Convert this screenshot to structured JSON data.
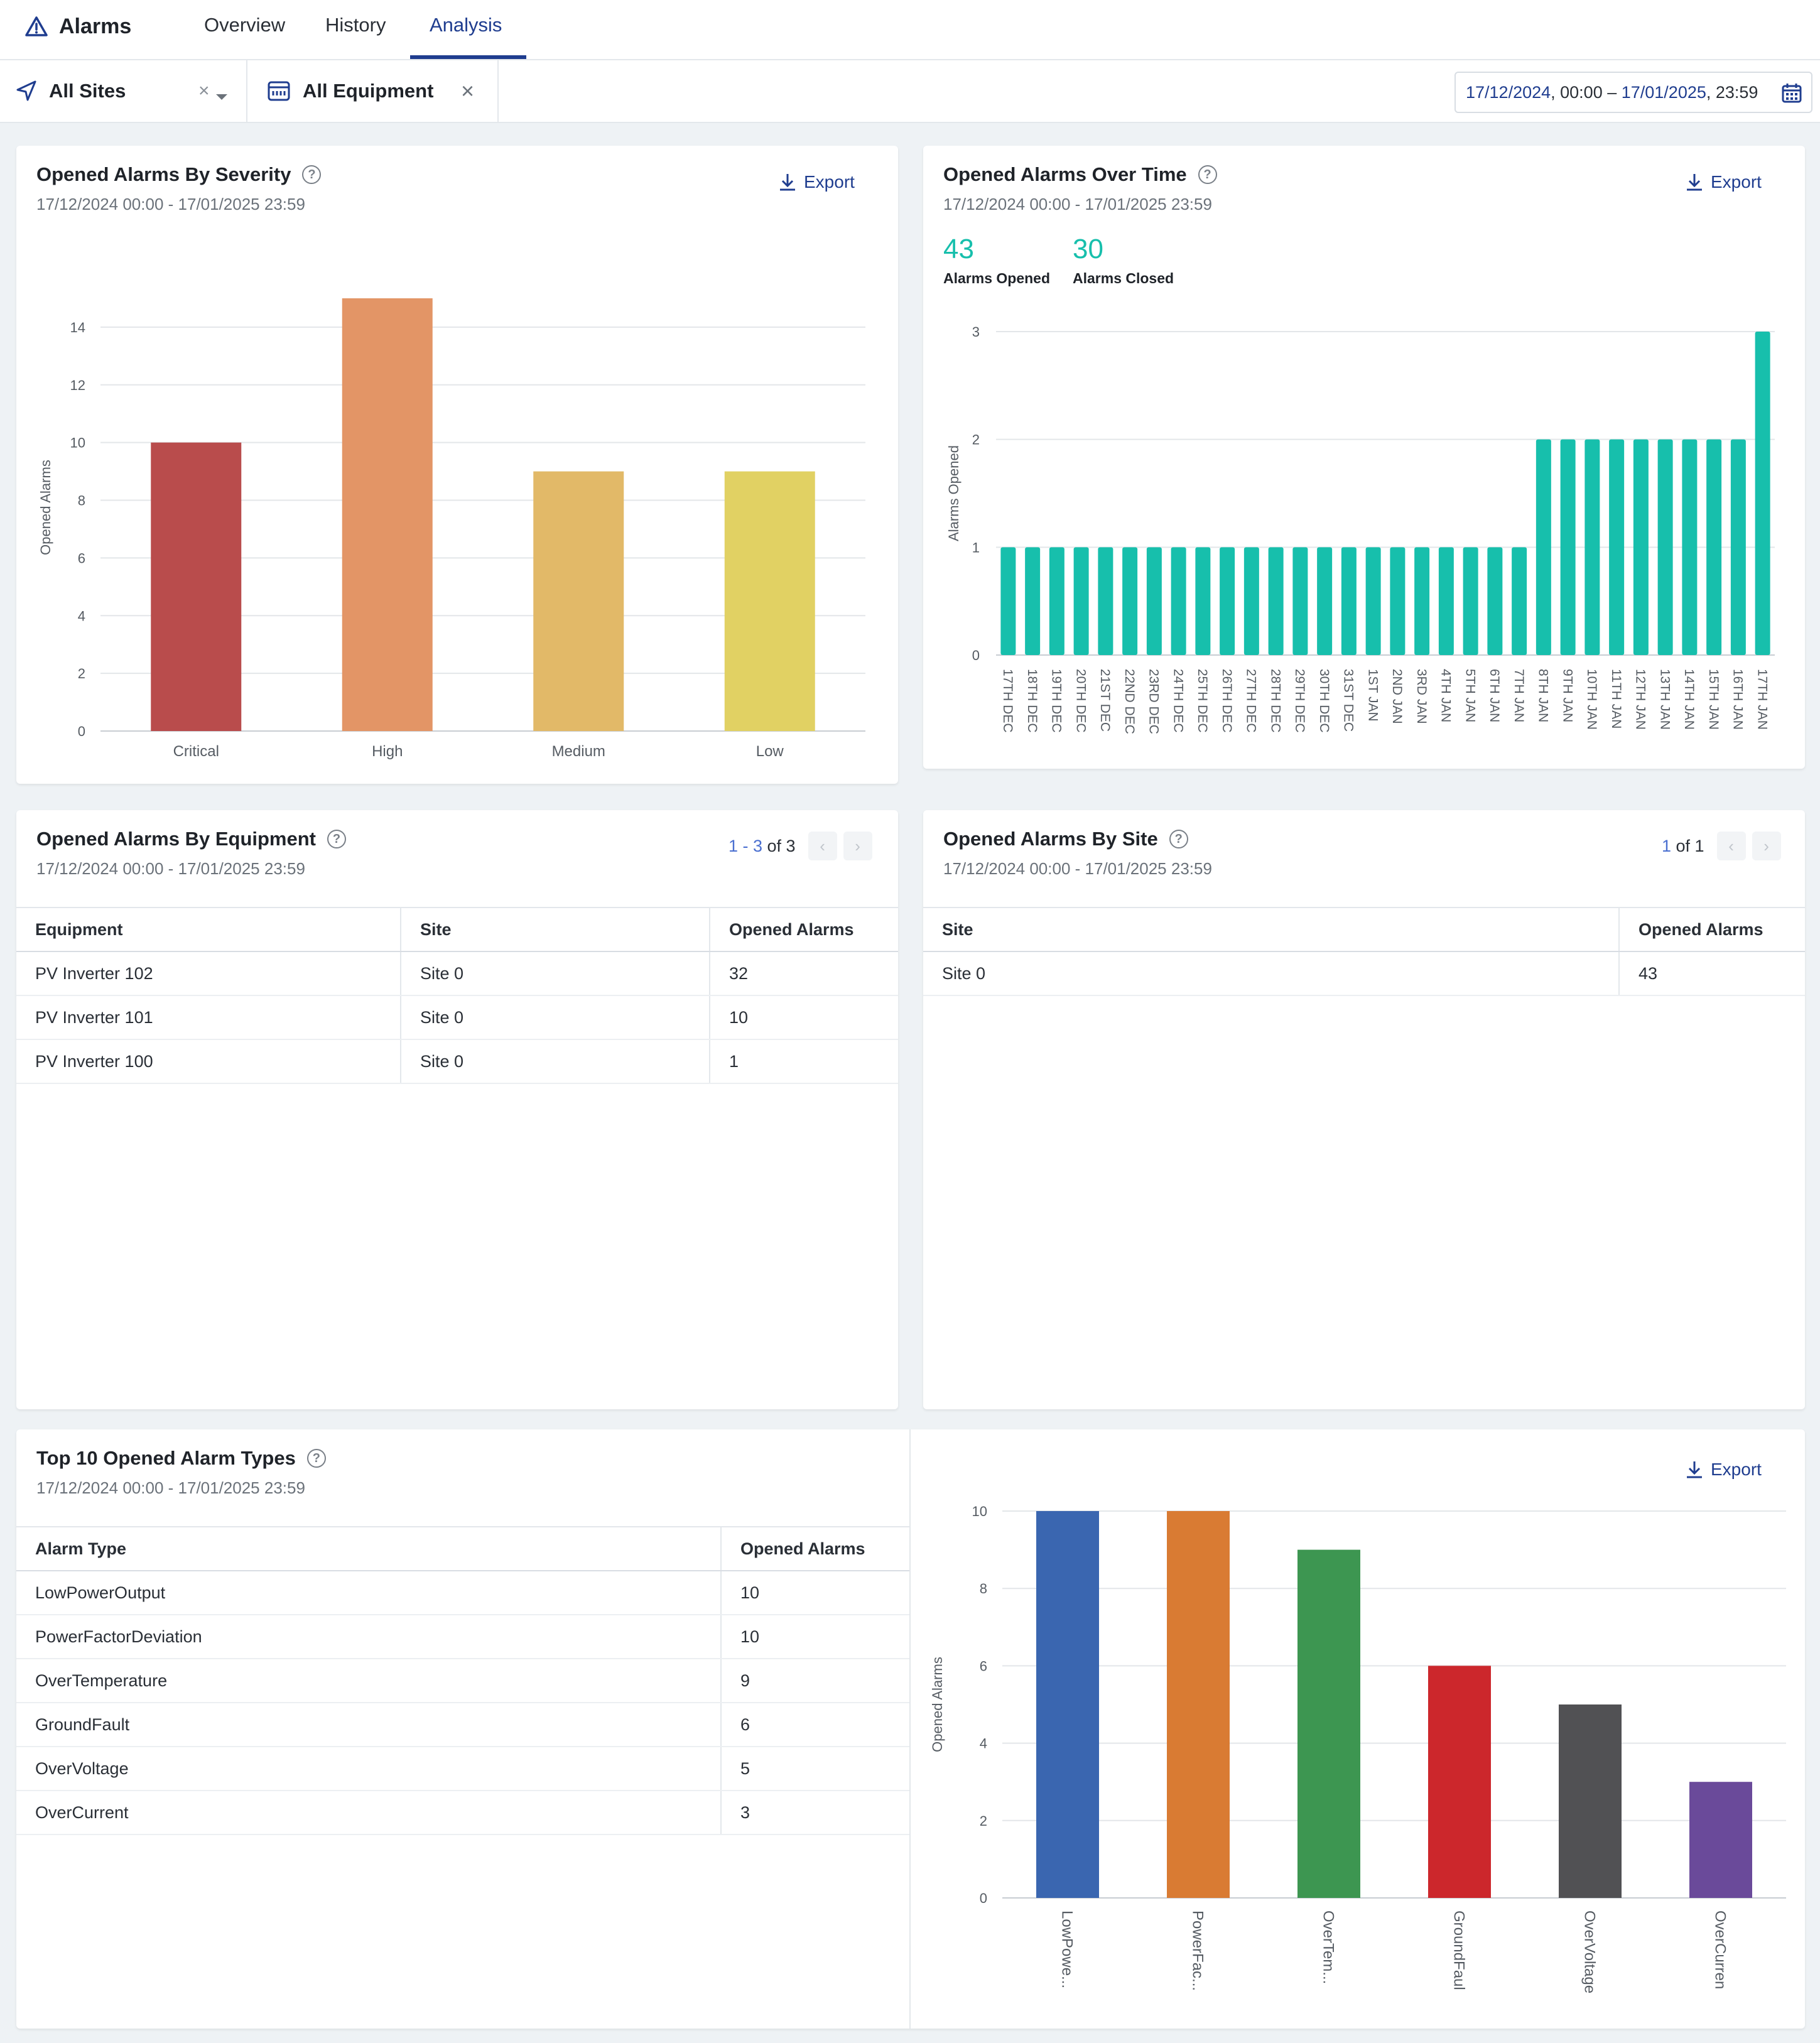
{
  "nav": {
    "title": "Alarms",
    "tabs": [
      "Overview",
      "History",
      "Analysis"
    ],
    "active_tab": "Analysis"
  },
  "filters": {
    "sites_label": "All Sites",
    "equipment_label": "All Equipment",
    "date_from": "17/12/2024",
    "time_from": ", 00:00 – ",
    "date_to": "17/01/2025",
    "time_to": ", 23:59"
  },
  "colors": {
    "accent": "#1f3d8f",
    "teal": "#17bfac",
    "critical": "#b94c4c",
    "high": "#e39566",
    "medium": "#e2b968",
    "low": "#e1d163"
  },
  "period": "17/12/2024 00:00 - 17/01/2025 23:59",
  "export_label": "Export",
  "severity_card": {
    "title": "Opened Alarms By Severity",
    "chart_data": {
      "type": "bar",
      "title": "Opened Alarms By Severity",
      "categories": [
        "Critical",
        "High",
        "Medium",
        "Low"
      ],
      "values": [
        10,
        15,
        9,
        9
      ],
      "colors": [
        "#b94c4c",
        "#e39566",
        "#e2b968",
        "#e1d163"
      ],
      "xlabel": "",
      "ylabel": "Opened Alarms",
      "ylim": [
        0,
        15.5
      ],
      "yticks": [
        0,
        2,
        4,
        6,
        8,
        10,
        12,
        14
      ],
      "grid": true
    }
  },
  "time_card": {
    "title": "Opened Alarms Over Time",
    "opened_count": "43",
    "opened_label": "Alarms Opened",
    "closed_count": "30",
    "closed_label": "Alarms Closed",
    "chart_data": {
      "type": "bar",
      "title": "Opened Alarms Over Time",
      "categories": [
        "17TH DEC",
        "18TH DEC",
        "19TH DEC",
        "20TH DEC",
        "21ST DEC",
        "22ND DEC",
        "23RD DEC",
        "24TH DEC",
        "25TH DEC",
        "26TH DEC",
        "27TH DEC",
        "28TH DEC",
        "29TH DEC",
        "30TH DEC",
        "31ST DEC",
        "1ST JAN",
        "2ND JAN",
        "3RD JAN",
        "4TH JAN",
        "5TH JAN",
        "6TH JAN",
        "7TH JAN",
        "8TH JAN",
        "9TH JAN",
        "10TH JAN",
        "11TH JAN",
        "12TH JAN",
        "13TH JAN",
        "14TH JAN",
        "15TH JAN",
        "16TH JAN",
        "17TH JAN"
      ],
      "values": [
        1,
        1,
        1,
        1,
        1,
        1,
        1,
        1,
        1,
        1,
        1,
        1,
        1,
        1,
        1,
        1,
        1,
        1,
        1,
        1,
        1,
        1,
        2,
        2,
        2,
        2,
        2,
        2,
        2,
        2,
        2,
        3
      ],
      "xlabel": "",
      "ylabel": "Alarms Opened",
      "ylim": [
        0,
        3
      ],
      "yticks": [
        0,
        1,
        2,
        3
      ],
      "grid": true
    }
  },
  "equipment_card": {
    "title": "Opened Alarms By Equipment",
    "pager": {
      "range": "1 - 3",
      "of": " of 3"
    },
    "columns": [
      "Equipment",
      "Site",
      "Opened Alarms"
    ],
    "rows": [
      [
        "PV Inverter 102",
        "Site 0",
        "32"
      ],
      [
        "PV Inverter 101",
        "Site 0",
        "10"
      ],
      [
        "PV Inverter 100",
        "Site 0",
        "1"
      ]
    ]
  },
  "site_card": {
    "title": "Opened Alarms By Site",
    "pager": {
      "range": "1",
      "of": " of 1"
    },
    "columns": [
      "Site",
      "Opened Alarms"
    ],
    "rows": [
      [
        "Site 0",
        "43"
      ]
    ]
  },
  "types_card": {
    "title": "Top 10 Opened Alarm Types",
    "columns": [
      "Alarm Type",
      "Opened Alarms"
    ],
    "rows": [
      [
        "LowPowerOutput",
        "10"
      ],
      [
        "PowerFactorDeviation",
        "10"
      ],
      [
        "OverTemperature",
        "9"
      ],
      [
        "GroundFault",
        "6"
      ],
      [
        "OverVoltage",
        "5"
      ],
      [
        "OverCurrent",
        "3"
      ]
    ],
    "chart_data": {
      "type": "bar",
      "title": "Top 10 Opened Alarm Types",
      "categories": [
        "LowPowe...",
        "PowerFac...",
        "OverTem...",
        "GroundFaul",
        "OverVoltage",
        "OverCurren"
      ],
      "values": [
        10,
        10,
        9,
        6,
        5,
        3
      ],
      "colors": [
        "#3a66b0",
        "#d97b33",
        "#3d9651",
        "#cc272c",
        "#515154",
        "#6a4a9a"
      ],
      "xlabel": "",
      "ylabel": "Opened Alarms",
      "ylim": [
        0,
        10
      ],
      "yticks": [
        0,
        2,
        4,
        6,
        8,
        10
      ],
      "grid": true
    }
  }
}
